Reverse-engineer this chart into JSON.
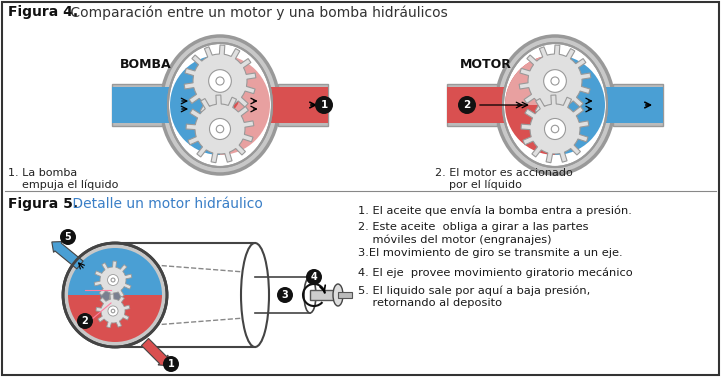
{
  "title4_bold": "Figura 4.",
  "title4_rest": " Comparación entre un motor y una bomba hidráulicos",
  "title5_bold": "Figura 5.",
  "title5_rest": " Detalle un motor hidráulico",
  "label_bomba": "BOMBA",
  "label_motor": "MOTOR",
  "caption1": "1. La bomba\n    empuja el líquido",
  "caption2": "2. El motor es accionado\n    por el líquido",
  "fig5_points": [
    "1. El aceite que envía la bomba entra a presión.",
    "2. Este aceite  obliga a girar a las partes\n    móviles del motor (engranajes)",
    "3.El movimiento de giro se transmite a un eje.",
    "4. El eje  provee movimiento giratorio mecánico",
    "5. El liquido sale por aquí a baja presión,\n    retornando al deposito"
  ],
  "bg_color": "#ffffff",
  "housing_color": "#c8c8c8",
  "housing_edge": "#999999",
  "blue_color": "#4a9fd4",
  "red_color": "#d95050",
  "pink_color": "#e8a0a0",
  "gear_color": "#e0e0e0",
  "gear_edge": "#999999",
  "text_color": "#1a1a1a",
  "number_bg": "#111111",
  "pipe_gray": "#bbbbbb"
}
